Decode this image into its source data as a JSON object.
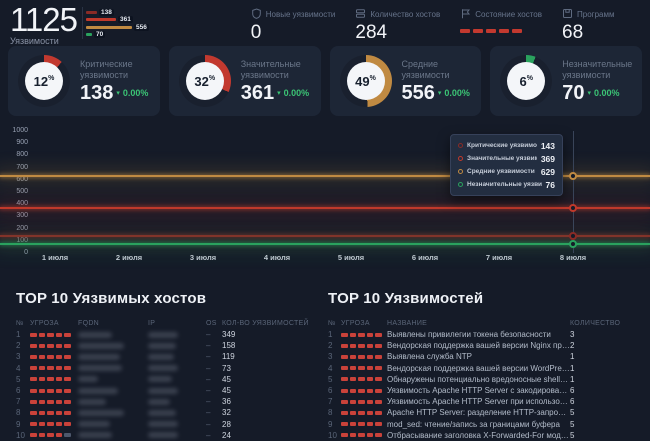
{
  "summary": {
    "total_value": "1125",
    "total_label": "Уязвимости",
    "breakdown": [
      {
        "label": "138",
        "value": 138,
        "color": "#8a2b26"
      },
      {
        "label": "361",
        "value": 361,
        "color": "#c0392b"
      },
      {
        "label": "556",
        "value": 556,
        "color": "#c08a42"
      },
      {
        "label": "70",
        "value": 70,
        "color": "#2aa25e"
      }
    ]
  },
  "top_stats": [
    {
      "icon": "shield-icon",
      "label": "Новые уязвимости",
      "type": "number",
      "value": "0"
    },
    {
      "icon": "server-icon",
      "label": "Количество хостов",
      "type": "number",
      "value": "284"
    },
    {
      "icon": "flag-icon",
      "label": "Состояние хостов",
      "type": "segments",
      "segments": 5,
      "segment_color": "#c2392f"
    },
    {
      "icon": "package-icon",
      "label": "Программ",
      "type": "number",
      "value": "68"
    }
  ],
  "gauges": [
    {
      "percent": "12",
      "label": "Критические уязвимости",
      "value": "138",
      "caret": "▾",
      "change": "0.00%",
      "color": "#c2392f"
    },
    {
      "percent": "32",
      "label": "Значительные уязвимости",
      "value": "361",
      "caret": "▾",
      "change": "0.00%",
      "color": "#c2392f"
    },
    {
      "percent": "49",
      "label": "Средние уязвимости",
      "value": "556",
      "caret": "▾",
      "change": "0.00%",
      "color": "#c08a42"
    },
    {
      "percent": "6",
      "label": "Незначительные уязвимости",
      "value": "70",
      "caret": "▾",
      "change": "0.00%",
      "color": "#2aa25e"
    }
  ],
  "chart_data": {
    "type": "line",
    "title": "",
    "x": [
      "1 июля",
      "2 июля",
      "3 июля",
      "4 июля",
      "5 июля",
      "6 июля",
      "7 июля",
      "8 июля"
    ],
    "ylim": [
      0,
      1000
    ],
    "y_ticks": [
      0,
      100,
      200,
      300,
      400,
      500,
      600,
      700,
      800,
      900,
      1000
    ],
    "grid": false,
    "legend_position": "tooltip-overlay",
    "series": [
      {
        "name": "Критические уязвимости",
        "color": "#8a2b26",
        "values": [
          143,
          143,
          143,
          143,
          143,
          143,
          143,
          143
        ]
      },
      {
        "name": "Значительные уязвимости",
        "color": "#c0392b",
        "values": [
          369,
          369,
          369,
          369,
          369,
          369,
          369,
          369
        ]
      },
      {
        "name": "Средние уязвимости",
        "color": "#c08a42",
        "values": [
          629,
          629,
          629,
          629,
          629,
          629,
          629,
          629
        ]
      },
      {
        "name": "Незначительные уязвимости",
        "color": "#2aa25e",
        "values": [
          76,
          76,
          76,
          76,
          76,
          76,
          76,
          76
        ]
      }
    ],
    "tooltip": {
      "x_index": 7,
      "rows": [
        {
          "label": "Критические уязвимости",
          "value": "143",
          "color": "#8a2b26"
        },
        {
          "label": "Значительные уязвимости",
          "value": "369",
          "color": "#c0392b"
        },
        {
          "label": "Средние уязвимости",
          "value": "629",
          "color": "#c08a42"
        },
        {
          "label": "Незначительные уязвимости",
          "value": "76",
          "color": "#2aa25e"
        }
      ]
    }
  },
  "tables": {
    "left": {
      "title": "TOP 10 Уязвимых хостов",
      "headers": [
        "№",
        "УГРОЗА",
        "FQDN",
        "IP",
        "OS",
        "КОЛ-ВО УЯЗВИМОСТЕЙ"
      ],
      "rows": [
        {
          "n": "1",
          "threat_level": 5,
          "fqdn_masked": true,
          "ip_masked": true,
          "os": "–",
          "count": "349"
        },
        {
          "n": "2",
          "threat_level": 5,
          "fqdn_masked": true,
          "ip_masked": true,
          "os": "–",
          "count": "158"
        },
        {
          "n": "3",
          "threat_level": 5,
          "fqdn_masked": true,
          "ip_masked": true,
          "os": "–",
          "count": "119"
        },
        {
          "n": "4",
          "threat_level": 5,
          "fqdn_masked": true,
          "ip_masked": true,
          "os": "–",
          "count": "73"
        },
        {
          "n": "5",
          "threat_level": 5,
          "fqdn_masked": true,
          "ip_masked": true,
          "os": "–",
          "count": "45"
        },
        {
          "n": "6",
          "threat_level": 5,
          "fqdn_masked": true,
          "ip_masked": true,
          "os": "–",
          "count": "45"
        },
        {
          "n": "7",
          "threat_level": 5,
          "fqdn_masked": true,
          "ip_masked": true,
          "os": "–",
          "count": "36"
        },
        {
          "n": "8",
          "threat_level": 5,
          "fqdn_masked": true,
          "ip_masked": true,
          "os": "–",
          "count": "32"
        },
        {
          "n": "9",
          "threat_level": 5,
          "fqdn_masked": true,
          "ip_masked": true,
          "os": "–",
          "count": "28"
        },
        {
          "n": "10",
          "threat_level": 4,
          "fqdn_masked": true,
          "ip_masked": true,
          "os": "–",
          "count": "24"
        }
      ]
    },
    "right": {
      "title": "TOP 10 Уязвимостей",
      "headers": [
        "№",
        "УГРОЗА",
        "НАЗВАНИЕ",
        "КОЛИЧЕСТВО"
      ],
      "rows": [
        {
          "n": "1",
          "threat_level": 5,
          "name": "Выявлены привилегии токена безопасности",
          "count": "3"
        },
        {
          "n": "2",
          "threat_level": 5,
          "name": "Вендорская поддержка вашей версии Nginx прекращена",
          "count": "2"
        },
        {
          "n": "3",
          "threat_level": 5,
          "name": "Выявлена служба NTP",
          "count": "1"
        },
        {
          "n": "4",
          "threat_level": 5,
          "name": "Вендорская поддержка вашей версии WordPress прекращена",
          "count": "1"
        },
        {
          "n": "5",
          "threat_level": 5,
          "name": "Обнаружены потенциально вредоносные shell файлы",
          "count": "1"
        },
        {
          "n": "6",
          "threat_level": 5,
          "name": "Уязвимость Apache HTTP Server с закодированными вопроси…",
          "count": "6"
        },
        {
          "n": "7",
          "threat_level": 5,
          "name": "Уязвимость Apache HTTP Server при использовании выходны…",
          "count": "6"
        },
        {
          "n": "8",
          "threat_level": 5,
          "name": "Apache HTTP Server: разделение HTTP-запросов с mod_rewrit…",
          "count": "5"
        },
        {
          "n": "9",
          "threat_level": 5,
          "name": "mod_sed: чтение/запись за границами буфера",
          "count": "5"
        },
        {
          "n": "10",
          "threat_level": 5,
          "name": "Отбрасывание заголовка X-Forwarded-For модулем mod_prox…",
          "count": "5"
        }
      ]
    }
  }
}
